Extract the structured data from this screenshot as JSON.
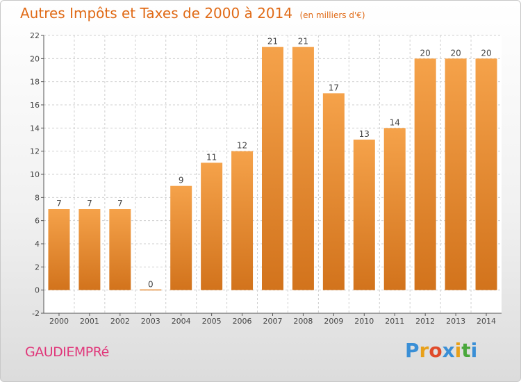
{
  "header": {
    "title": "Autres Impôts et Taxes de 2000 à 2014",
    "unit": "(en milliers d'€)"
  },
  "footer": {
    "commune": "GAUDIEMPRé",
    "logo_letters": [
      "P",
      "r",
      "o",
      "x",
      "i",
      "t",
      "i"
    ],
    "logo_colors": [
      "#3a8fd6",
      "#e8a019",
      "#e04a2a",
      "#3a8fd6",
      "#e8a019",
      "#4aa83c",
      "#3a8fd6"
    ]
  },
  "chart_data": {
    "type": "bar",
    "categories": [
      "2000",
      "2001",
      "2002",
      "2003",
      "2004",
      "2005",
      "2006",
      "2007",
      "2008",
      "2009",
      "2010",
      "2011",
      "2012",
      "2013",
      "2014"
    ],
    "values": [
      7,
      7,
      7,
      0,
      9,
      11,
      12,
      21,
      21,
      17,
      13,
      14,
      20,
      20,
      20
    ],
    "data_labels": [
      "7",
      "7",
      "7",
      "0",
      "9",
      "11",
      "12",
      "21",
      "21",
      "17",
      "13",
      "14",
      "20",
      "20",
      "20"
    ],
    "title": "Autres Impôts et Taxes de 2000 à 2014",
    "subtitle": "(en milliers d'€)",
    "xlabel": "",
    "ylabel": "",
    "ylim": [
      -2,
      22
    ],
    "yticks": [
      "-2",
      "0",
      "2",
      "4",
      "6",
      "8",
      "10",
      "12",
      "14",
      "16",
      "18",
      "20",
      "22"
    ],
    "grid": true,
    "bar_color": "#f5a24a",
    "bar_color_dark": "#d2731c",
    "grid_color": "#cfcfcf"
  }
}
